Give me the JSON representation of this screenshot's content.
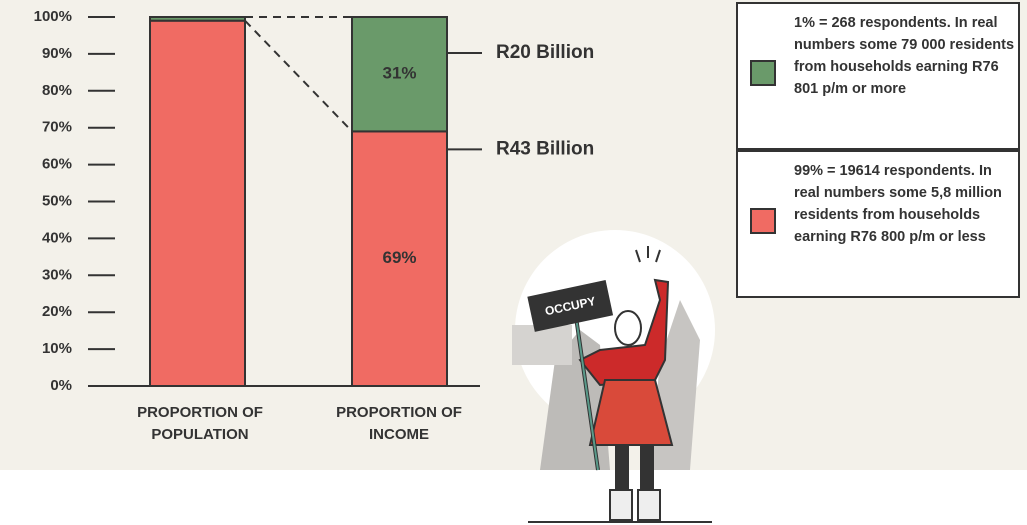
{
  "chart_data": {
    "type": "stacked-bar",
    "categories": [
      "PROPORTION OF POPULATION",
      "PROPORTION OF INCOME"
    ],
    "series": [
      {
        "name": "99% = 19614 respondents. In real numbers some 5,8 million residents from households earning R76 800 p/m or less",
        "color": "#f06b63",
        "values": [
          99,
          69
        ],
        "value_labels": [
          null,
          "69%"
        ]
      },
      {
        "name": "1% = 268 respondents. In real numbers some 79 000 residents from households earning R76 801 p/m or more",
        "color": "#6a9a6a",
        "values": [
          1,
          31
        ],
        "value_labels": [
          null,
          "31%"
        ]
      }
    ],
    "annotations": [
      {
        "text": "R43 Billion",
        "series": 0,
        "category": 1
      },
      {
        "text": "R20 Billion",
        "series": 1,
        "category": 1
      }
    ],
    "ylim": [
      0,
      100
    ],
    "yticks": [
      {
        "value": 0,
        "label": "0%"
      },
      {
        "value": 10,
        "label": "10%"
      },
      {
        "value": 20,
        "label": "20%"
      },
      {
        "value": 30,
        "label": "30%"
      },
      {
        "value": 40,
        "label": "40%"
      },
      {
        "value": 50,
        "label": "50%"
      },
      {
        "value": 60,
        "label": "60%"
      },
      {
        "value": 70,
        "label": "70%"
      },
      {
        "value": 80,
        "label": "80%"
      },
      {
        "value": 90,
        "label": "90%"
      },
      {
        "value": 100,
        "label": "100%"
      }
    ],
    "legend": "top-right"
  },
  "illustration": {
    "sign": "OCCUPY"
  }
}
